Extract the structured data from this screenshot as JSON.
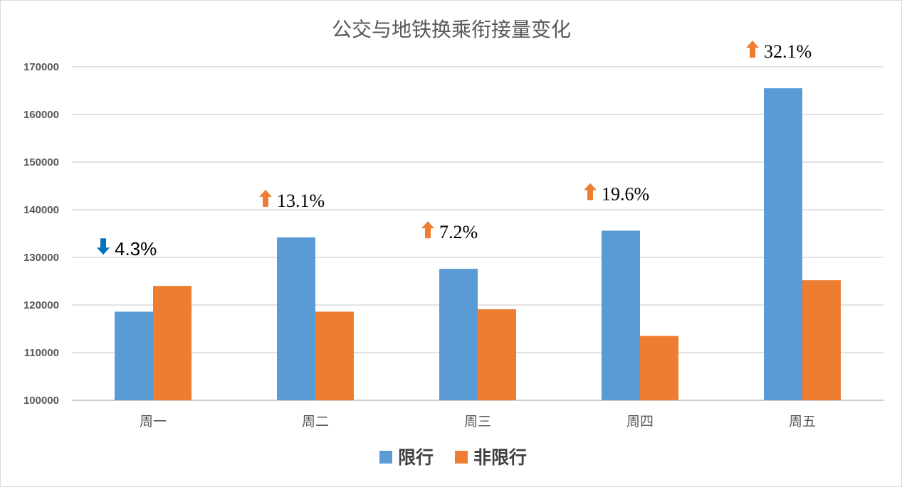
{
  "chart_data": {
    "type": "bar",
    "title": "公交与地铁换乘衔接量变化",
    "xlabel": "",
    "ylabel": "",
    "categories": [
      "周一",
      "周二",
      "周三",
      "周四",
      "周五"
    ],
    "series": [
      {
        "name": "限行",
        "color": "#5B9BD5",
        "values": [
          118600,
          134200,
          127600,
          135600,
          165500
        ]
      },
      {
        "name": "非限行",
        "color": "#ED7D31",
        "values": [
          124000,
          118600,
          119100,
          113500,
          125200
        ]
      }
    ],
    "ylim": [
      100000,
      170000
    ],
    "yticks": [
      100000,
      110000,
      120000,
      130000,
      140000,
      150000,
      160000,
      170000
    ],
    "grid": true,
    "legend": "bottom",
    "annotations": [
      {
        "category": "周一",
        "text": "4.3%",
        "direction": "down",
        "color": "#0070C0"
      },
      {
        "category": "周二",
        "text": "13.1%",
        "direction": "up",
        "color": "#ED7D31"
      },
      {
        "category": "周三",
        "text": "7.2%",
        "direction": "up",
        "color": "#ED7D31"
      },
      {
        "category": "周四",
        "text": "19.6%",
        "direction": "up",
        "color": "#ED7D31"
      },
      {
        "category": "周五",
        "text": "32.1%",
        "direction": "up",
        "color": "#ED7D31"
      }
    ]
  }
}
